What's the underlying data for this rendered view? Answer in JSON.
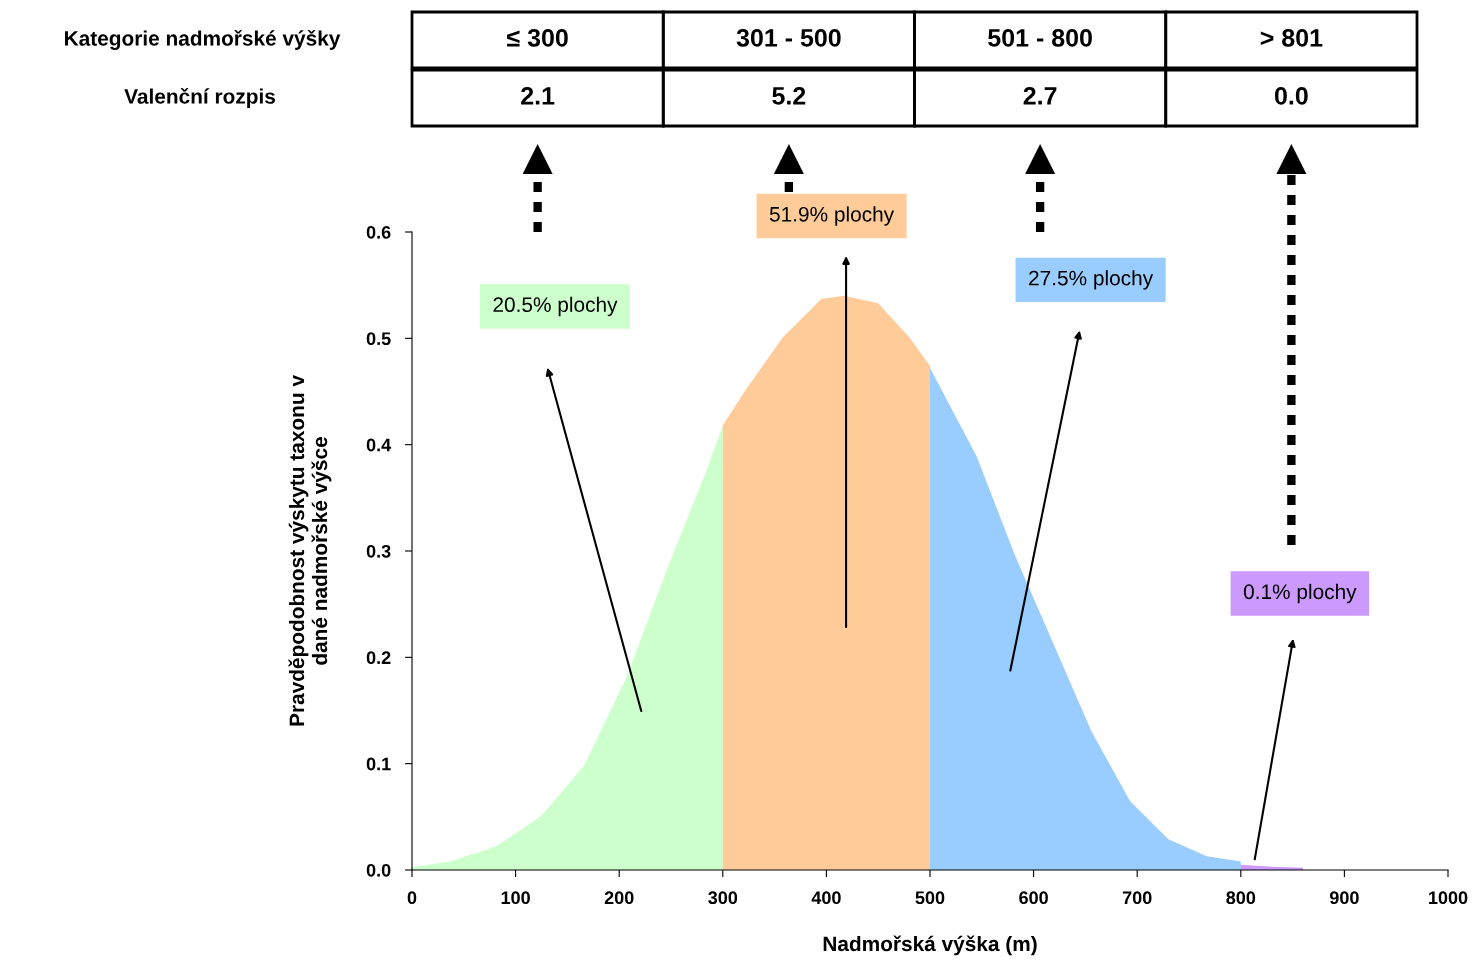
{
  "chart_data": {
    "type": "area",
    "xlabel": "Nadmořská výška (m)",
    "ylabel": "Pravděpodobnost výskytu taxonu v\ndané nadmořské výšce",
    "series": [
      {
        "color": "#ccffcc",
        "x": [
          0,
          3,
          37,
          81,
          125,
          166,
          207,
          247,
          284,
          300
        ],
        "values": [
          0.003,
          0.003,
          0.008,
          0.022,
          0.051,
          0.098,
          0.181,
          0.285,
          0.375,
          0.418
        ]
      },
      {
        "color": "#ffcc99",
        "x": [
          300,
          321,
          358,
          395,
          417,
          450,
          480,
          500
        ],
        "values": [
          0.418,
          0.45,
          0.501,
          0.537,
          0.54,
          0.533,
          0.501,
          0.474
        ]
      },
      {
        "color": "#99ccff",
        "x": [
          500,
          545,
          582,
          619,
          656,
          693,
          730,
          767,
          800
        ],
        "values": [
          0.472,
          0.389,
          0.296,
          0.213,
          0.13,
          0.065,
          0.029,
          0.013,
          0.008
        ]
      },
      {
        "color": "#cc99ff",
        "x": [
          800,
          830,
          860
        ],
        "values": [
          0.005,
          0.003,
          0.002
        ]
      }
    ],
    "xlim": [
      0,
      1000
    ],
    "xticks": [
      0,
      100,
      200,
      300,
      400,
      500,
      600,
      700,
      800,
      900,
      1000
    ],
    "ylim": [
      0,
      0.6
    ],
    "yticks": [
      {
        "value": 0,
        "label": "0.0"
      },
      {
        "value": 0.1,
        "label": "0.1"
      },
      {
        "value": 0.2,
        "label": "0.2"
      },
      {
        "value": 0.3,
        "label": "0.3"
      },
      {
        "value": 0.4,
        "label": "0.4"
      },
      {
        "value": 0.5,
        "label": "0.5"
      },
      {
        "value": 0.6,
        "label": "0.6"
      }
    ],
    "grid": false,
    "legend": false,
    "annotations": [
      "Kategorie nadmořské výšky",
      "≤ 300",
      "301 - 500",
      "501 - 800",
      "> 801",
      "Valenční rozpis",
      "2.1",
      "5.2",
      "2.7",
      "0.0",
      "20.5% plochy",
      "51.9% plochy",
      "27.5% plochy",
      "0.1% plochy"
    ]
  }
}
